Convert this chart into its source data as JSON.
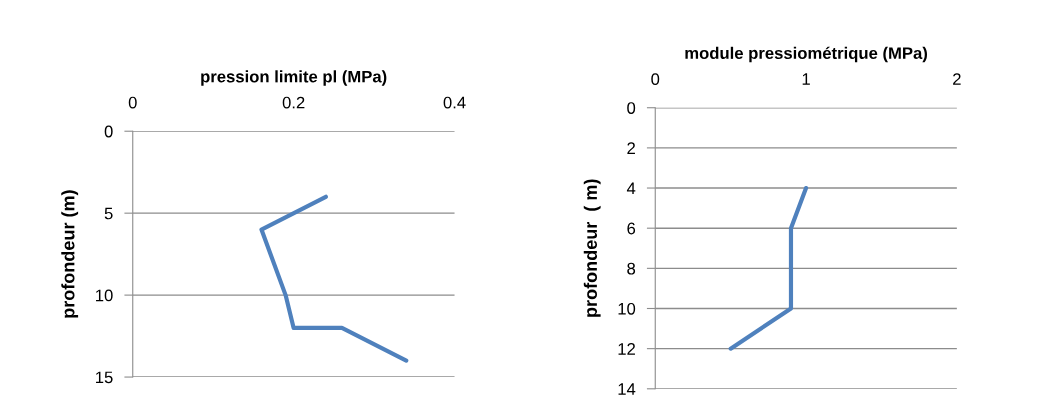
{
  "chart_data": [
    {
      "type": "line",
      "xlabel": "pression limite pl (MPa)",
      "ylabel": "profondeur (m)",
      "xlim": [
        0,
        0.4
      ],
      "xticks": [
        0,
        0.2,
        0.4
      ],
      "ylim": [
        15,
        0
      ],
      "yticks": [
        0,
        5,
        10,
        15
      ],
      "grid": "y",
      "series": [
        {
          "color": "#4f81bd",
          "x": [
            0.24,
            0.16,
            0.19,
            0.2,
            0.26,
            0.34
          ],
          "values": [
            4,
            6,
            10,
            12,
            12,
            14
          ]
        }
      ]
    },
    {
      "type": "line",
      "xlabel": "module pressiométrique (MPa)",
      "ylabel": "profondeur  ( m)",
      "xlim": [
        0,
        2
      ],
      "xticks": [
        0,
        1,
        2
      ],
      "ylim": [
        14,
        0
      ],
      "yticks": [
        0,
        2,
        4,
        6,
        8,
        10,
        12,
        14
      ],
      "grid": "y",
      "series": [
        {
          "color": "#4f81bd",
          "x": [
            1.0,
            0.9,
            0.9,
            0.5
          ],
          "values": [
            4,
            6,
            10,
            12
          ]
        }
      ]
    }
  ]
}
